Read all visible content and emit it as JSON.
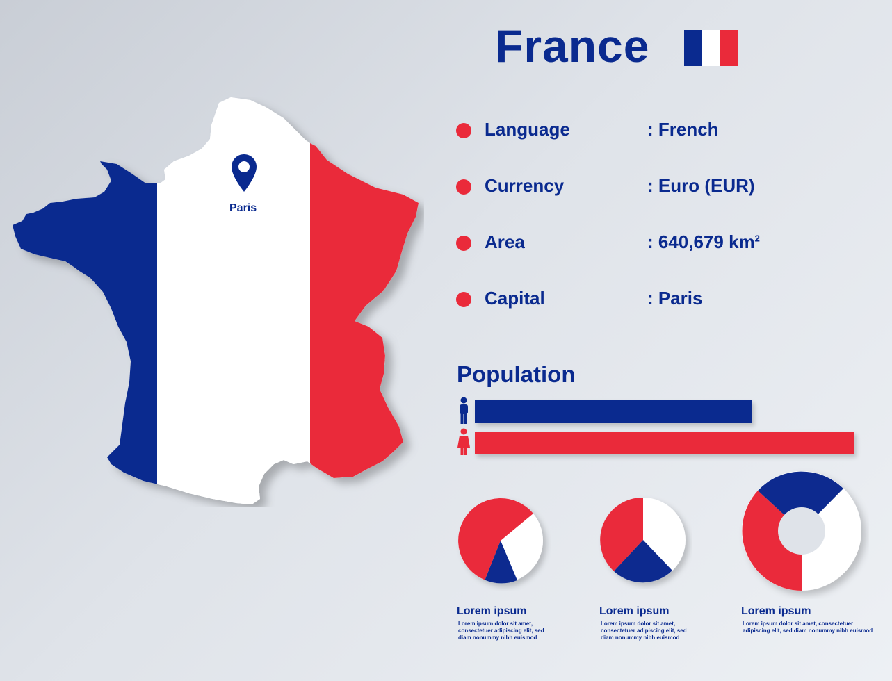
{
  "header": {
    "title": "France"
  },
  "flag_colors": {
    "blue": "#0a2a8f",
    "white": "#ffffff",
    "red": "#ea2a3a"
  },
  "map": {
    "pin_icon": "location-pin-icon",
    "capital_label": "Paris"
  },
  "info": [
    {
      "label": "Language",
      "value": ": French"
    },
    {
      "label": "Currency",
      "value": ": Euro (EUR)"
    },
    {
      "label": "Area",
      "value": ": 640,679  km",
      "unit_sup": "2"
    },
    {
      "label": "Capital",
      "value": ": Paris"
    }
  ],
  "population": {
    "title": "Population",
    "male_icon": "male-person-icon",
    "female_icon": "female-person-icon",
    "male_bar_fraction": 0.73,
    "female_bar_fraction": 1.0
  },
  "pies": [
    {
      "caption_title": "Lorem ipsum",
      "caption_text": "Lorem ipsum dolor sit amet, consectetuer adipiscing elit, sed diam nonummy nibh euismod"
    },
    {
      "caption_title": "Lorem ipsum",
      "caption_text": "Lorem ipsum dolor sit amet, consectetuer adipiscing elit, sed diam nonummy nibh euismod"
    },
    {
      "caption_title": "Lorem ipsum",
      "caption_text": "Lorem ipsum dolor sit amet, consectetuer adipiscing elit, sed diam nonummy nibh euismod"
    }
  ]
}
